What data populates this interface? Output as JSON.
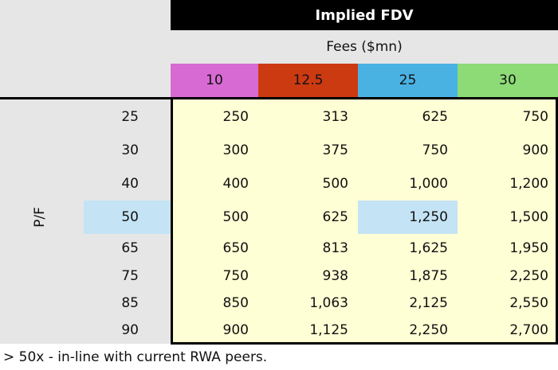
{
  "header": {
    "title": "Implied FDV",
    "subtitle": "Fees ($mn)",
    "columns": [
      "10",
      "12.5",
      "25",
      "30"
    ]
  },
  "table": {
    "row_header": "P/F",
    "rows": [
      [
        "25",
        "250",
        "313",
        "625",
        "750"
      ],
      [
        "30",
        "300",
        "375",
        "750",
        "900"
      ],
      [
        "40",
        "400",
        "500",
        "1,000",
        "1,200"
      ],
      [
        "50",
        "500",
        "625",
        "1,250",
        "1,500"
      ],
      [
        "65",
        "650",
        "813",
        "1,625",
        "1,950"
      ],
      [
        "75",
        "750",
        "938",
        "1,875",
        "2,250"
      ],
      [
        "85",
        "850",
        "1,063",
        "2,125",
        "2,550"
      ],
      [
        "90",
        "900",
        "1,125",
        "2,250",
        "2,700"
      ]
    ]
  },
  "footnote": "> 50x - in-line with current RWA peers."
}
